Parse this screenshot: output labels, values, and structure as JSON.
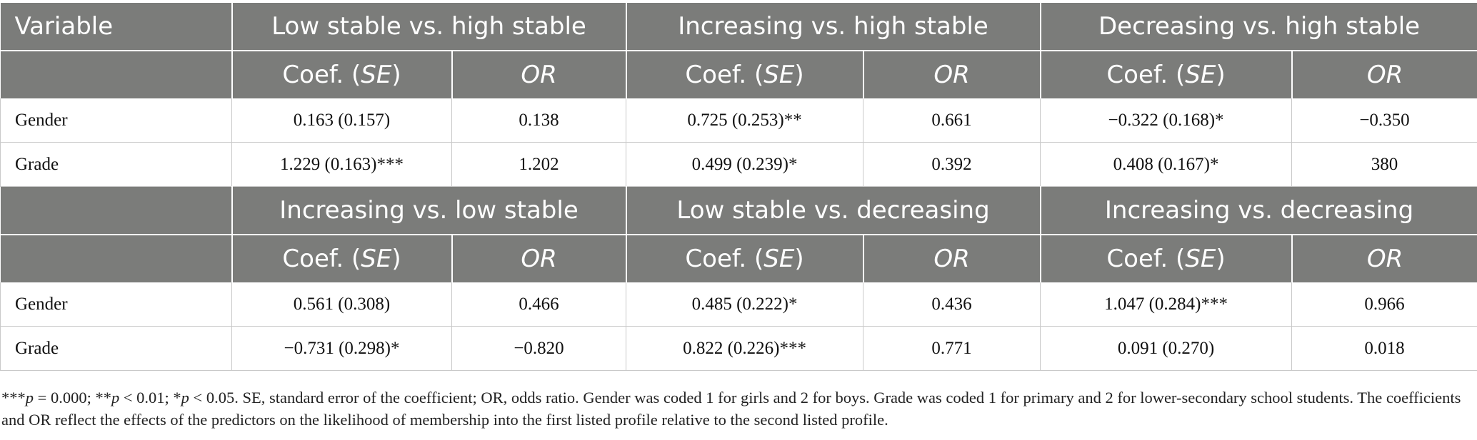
{
  "table": {
    "variable_label": "Variable",
    "panel1": {
      "groups": [
        "Low stable vs. high stable",
        "Increasing vs. high stable",
        "Decreasing vs. high stable"
      ],
      "coef_prefix": "Coef. (",
      "coef_se": "SE",
      "coef_suffix": ")",
      "or_label": "OR",
      "rows": [
        {
          "label": "Gender",
          "values": [
            "0.163 (0.157)",
            "0.138",
            "0.725 (0.253)**",
            "0.661",
            "−0.322 (0.168)*",
            "−0.350"
          ]
        },
        {
          "label": "Grade",
          "values": [
            "1.229 (0.163)***",
            "1.202",
            "0.499 (0.239)*",
            "0.392",
            "0.408 (0.167)*",
            "380"
          ]
        }
      ]
    },
    "panel2": {
      "groups": [
        "Increasing vs. low stable",
        "Low stable vs. decreasing",
        "Increasing vs. decreasing"
      ],
      "rows": [
        {
          "label": "Gender",
          "values": [
            "0.561 (0.308)",
            "0.466",
            "0.485 (0.222)*",
            "0.436",
            "1.047 (0.284)***",
            "0.966"
          ]
        },
        {
          "label": "Grade",
          "values": [
            "−0.731 (0.298)*",
            "−0.820",
            "0.822 (0.226)***",
            "0.771",
            "0.091 (0.270)",
            "0.018"
          ]
        }
      ]
    }
  },
  "note": {
    "p1_stars": "***",
    "p1_var": "p",
    "p1_rest": " = 0.000; ",
    "p2_stars": "**",
    "p2_var": "p",
    "p2_rest": " < 0.01; ",
    "p3_stars": "*",
    "p3_var": "p",
    "p3_rest": " < 0.05. ",
    "text": "SE, standard error of the coefficient; OR, odds ratio. Gender was coded 1 for girls and 2 for boys. Grade was coded 1 for primary and 2 for lower-secondary school students. The coefficients and OR reflect the effects of the predictors on the likelihood of membership into the first listed profile relative to the second listed profile."
  }
}
